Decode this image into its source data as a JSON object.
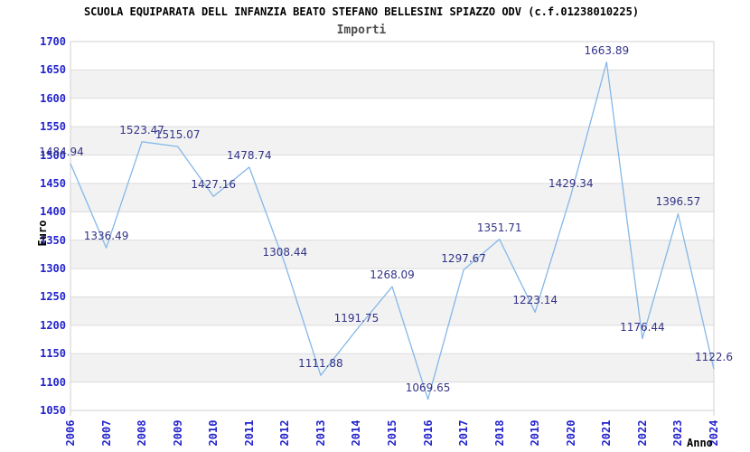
{
  "chart_data": {
    "type": "line",
    "title": "SCUOLA EQUIPARATA DELL INFANZIA BEATO STEFANO BELLESINI SPIAZZO ODV (c.f.01238010225)",
    "subtitle": "Importi",
    "xlabel": "Anno",
    "ylabel": "Euro",
    "x": [
      "2006",
      "2007",
      "2008",
      "2009",
      "2010",
      "2011",
      "2012",
      "2013",
      "2014",
      "2015",
      "2016",
      "2017",
      "2018",
      "2019",
      "2020",
      "2021",
      "2022",
      "2023",
      "2024"
    ],
    "values": [
      1484.94,
      1336.49,
      1523.47,
      1515.07,
      1427.16,
      1478.74,
      1308.44,
      1111.88,
      1191.75,
      1268.09,
      1069.65,
      1297.67,
      1351.71,
      1223.14,
      1429.34,
      1663.89,
      1176.44,
      1396.57,
      1122.6
    ],
    "point_labels": [
      "1484.94",
      "1336.49",
      "1523.47",
      "1515.07",
      "1427.16",
      "1478.74",
      "1308.44",
      "1111.88",
      "1191.75",
      "1268.09",
      "1069.65",
      "1297.67",
      "1351.71",
      "1223.14",
      "1429.34",
      "1663.89",
      "1176.44",
      "1396.57",
      "1122.6"
    ],
    "ylim": [
      1050,
      1700
    ],
    "ytick_step": 50,
    "grid": "horizontal-bands",
    "legend": "none",
    "colors": {
      "line": "#85b7e8",
      "tick_label": "#2323cc",
      "point_label": "#333388",
      "band_gray": "#f2f2f2",
      "gridline": "#dcdcdc",
      "border": "#d2d2d2",
      "title": "#000000",
      "subtitle": "#4d4d4d",
      "axis_label": "#000000"
    }
  }
}
